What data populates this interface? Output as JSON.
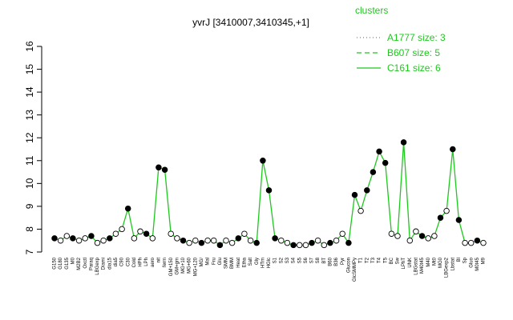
{
  "chart_data": {
    "type": "line",
    "title": "yvrJ [3410007,3410345,+1]",
    "ylim": [
      7,
      16
    ],
    "yticks": [
      7,
      8,
      9,
      10,
      11,
      12,
      13,
      14,
      15,
      16
    ],
    "xlabel": "",
    "ylabel": "",
    "grid": false,
    "legend": {
      "title": "clusters",
      "placement": "top-right",
      "entries": [
        {
          "label": "A1777 size: 3",
          "style": "dotted"
        },
        {
          "label": "B607 size: 5",
          "style": "dashed"
        },
        {
          "label": "C161 size: 6",
          "style": "solid"
        }
      ]
    },
    "line_color": "#1ec81e",
    "categories": [
      "G150",
      "G180",
      "G135",
      "M0",
      "M2B2",
      "Oxctl",
      "Paraq",
      "LBGexp",
      "Diami",
      "dia15",
      "dia5",
      "C90",
      "C30",
      "Cold",
      "HPh",
      "LPh",
      "aero",
      "nit",
      "ferm",
      "GM+150",
      "GM+gm",
      "MG+10",
      "MG+60",
      "MG+120",
      "MG/",
      "Mal",
      "Fru",
      "Glu",
      "SMM",
      "BMM",
      "Heat",
      "Etha",
      "Salt",
      "Gly",
      "HTm",
      "HGlc",
      "S1",
      "S2",
      "S3",
      "S4",
      "S5",
      "S6",
      "S7",
      "S8",
      "BT",
      "B60",
      "B36",
      "Pyr",
      "Glucon",
      "GlcSMMPy",
      "T1",
      "T2",
      "T3",
      "T4",
      "T5",
      "BC",
      "Sw",
      "LPhT",
      "UNK",
      "LBGstat",
      "M40t45",
      "M40",
      "Mt0",
      "MG0",
      "LBGexp2",
      "Lbstat",
      "Bl",
      "Sp",
      "Gluo",
      "M0t45",
      "M9"
    ],
    "series": [
      {
        "values": [
          7.6,
          7.5,
          7.7,
          7.6,
          7.5,
          7.6,
          7.7,
          7.4,
          7.5,
          7.6,
          7.8,
          8.0,
          8.9,
          7.6,
          7.9,
          7.8,
          7.6,
          10.7,
          10.6,
          7.8,
          7.6,
          7.5,
          7.4,
          7.5,
          7.4,
          7.5,
          7.5,
          7.3,
          7.5,
          7.4,
          7.6,
          7.8,
          7.5,
          7.4,
          11.0,
          9.7,
          7.6,
          7.5,
          7.4,
          7.3,
          7.3,
          7.3,
          7.4,
          7.5,
          7.3,
          7.4,
          7.5,
          7.8,
          7.4,
          9.5,
          8.8,
          9.7,
          10.5,
          11.4,
          10.9,
          7.8,
          7.7,
          11.8,
          7.5,
          7.9,
          7.7,
          7.6,
          7.7,
          8.5,
          8.8,
          11.5,
          8.4,
          7.4,
          7.4,
          7.5,
          7.4
        ]
      }
    ]
  }
}
